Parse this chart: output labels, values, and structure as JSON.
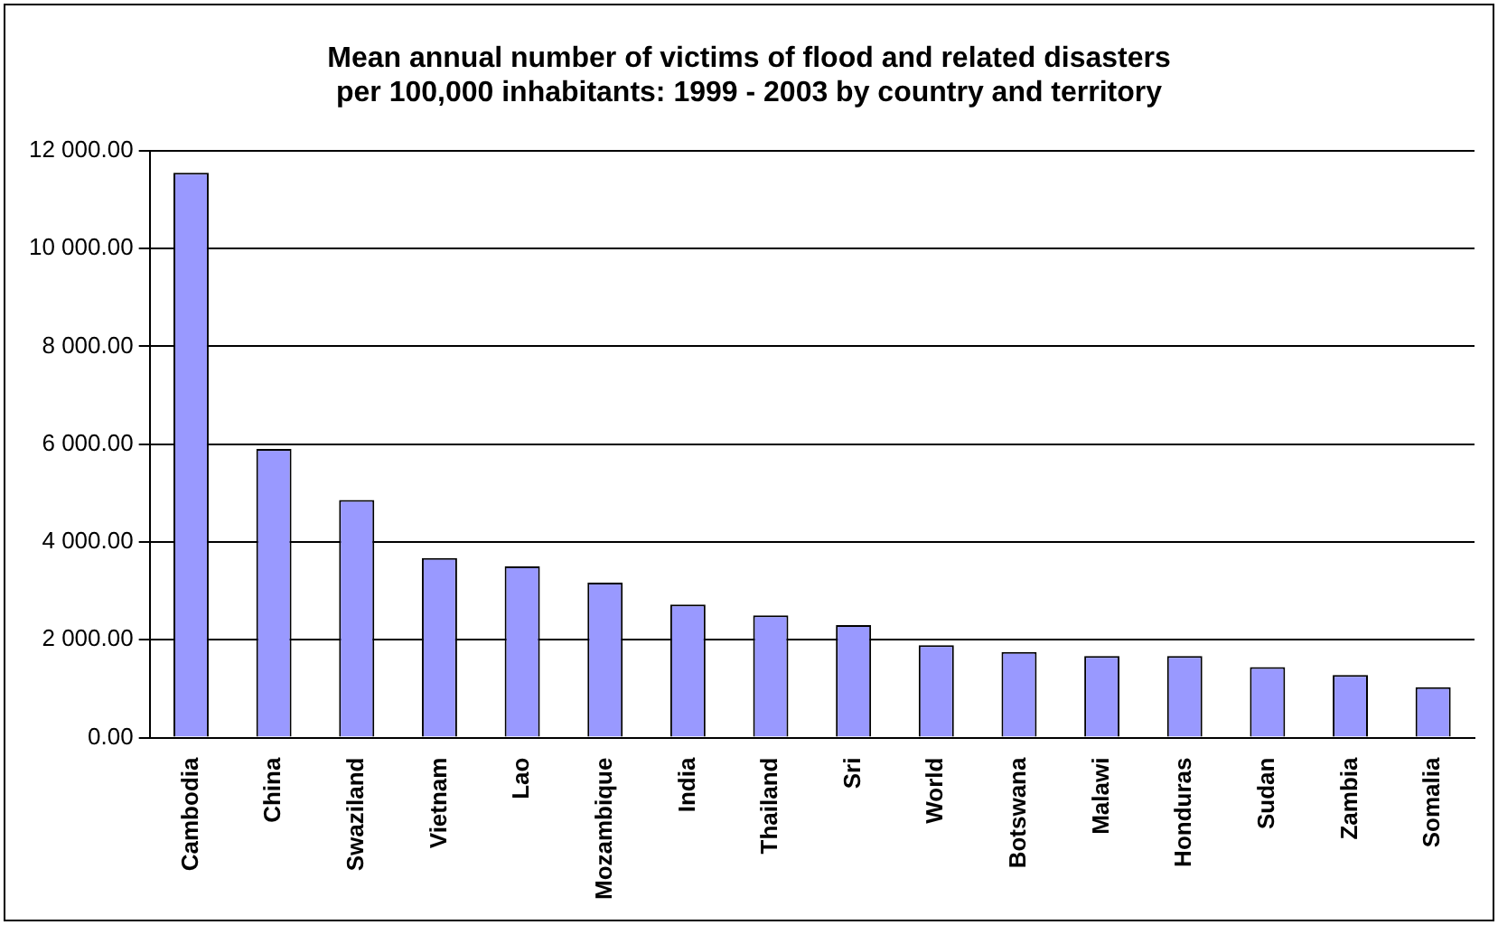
{
  "chart_data": {
    "type": "bar",
    "title": "Mean annual number of victims of flood and related disasters\nper 100,000 inhabitants: 1999 - 2003 by country and territory",
    "categories": [
      "Cambodia",
      "China",
      "Swaziland",
      "Vietnam",
      "Lao",
      "Mozambique",
      "India",
      "Thailand",
      "Sri",
      "World",
      "Botswana",
      "Malawi",
      "Honduras",
      "Sudan",
      "Zambia",
      "Somalia"
    ],
    "values": [
      11550,
      5900,
      4860,
      3670,
      3500,
      3170,
      2720,
      2500,
      2300,
      1890,
      1750,
      1670,
      1670,
      1440,
      1280,
      1030
    ],
    "color": "#9999ff",
    "ylim": [
      0,
      12000
    ],
    "yticks": [
      {
        "value": 0,
        "label": "0.00"
      },
      {
        "value": 2000,
        "label": "2 000.00"
      },
      {
        "value": 4000,
        "label": "4 000.00"
      },
      {
        "value": 6000,
        "label": "6 000.00"
      },
      {
        "value": 8000,
        "label": "8 000.00"
      },
      {
        "value": 10000,
        "label": "10 000.00"
      },
      {
        "value": 12000,
        "label": "12 000.00"
      }
    ],
    "grid": "y",
    "legend": false
  }
}
